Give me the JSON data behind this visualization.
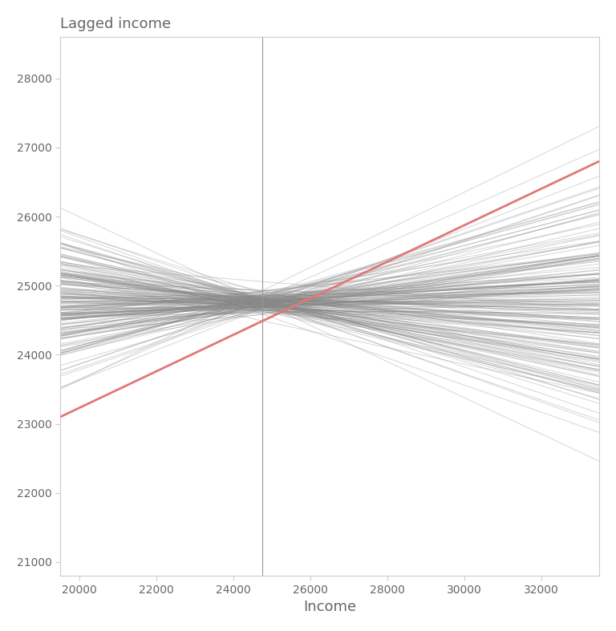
{
  "title": "Lagged income",
  "xlabel": "Income",
  "ylabel": "",
  "xlim": [
    19500,
    33500
  ],
  "ylim": [
    20800,
    28600
  ],
  "xticks": [
    20000,
    22000,
    24000,
    26000,
    28000,
    30000,
    32000
  ],
  "yticks": [
    21000,
    22000,
    23000,
    24000,
    25000,
    26000,
    27000,
    28000
  ],
  "n_permutations": 199,
  "mean_income": 24750,
  "mean_lagged": 24750,
  "x_start": 19500,
  "x_end": 33500,
  "observed_slope": 0.27,
  "perm_slope_std": 0.1,
  "perm_intercept_noise": 80,
  "gray_color": "#888888",
  "red_color": "#E07878",
  "vline_color": "#999999",
  "bg_color": "#FFFFFF",
  "title_color": "#666666",
  "axis_label_color": "#666666",
  "tick_color": "#666666",
  "line_alpha": 0.35,
  "line_lw": 0.7,
  "red_lw": 2.0,
  "random_seed": 42
}
